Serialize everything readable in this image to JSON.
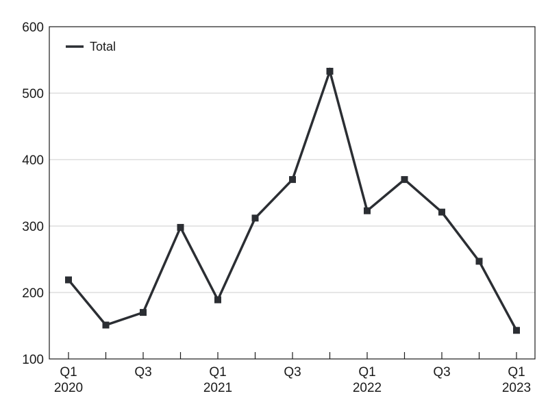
{
  "chart_data": {
    "type": "line",
    "title": "",
    "xlabel": "",
    "ylabel": "",
    "x": [
      "Q1 2020",
      "Q2 2020",
      "Q3 2020",
      "Q4 2020",
      "Q1 2021",
      "Q2 2021",
      "Q3 2021",
      "Q4 2021",
      "Q1 2022",
      "Q2 2022",
      "Q3 2022",
      "Q4 2022",
      "Q1 2023"
    ],
    "x_tick_labels": [
      {
        "index": 0,
        "line1": "Q1",
        "line2": "2020"
      },
      {
        "index": 2,
        "line1": "Q3",
        "line2": ""
      },
      {
        "index": 4,
        "line1": "Q1",
        "line2": "2021"
      },
      {
        "index": 6,
        "line1": "Q3",
        "line2": ""
      },
      {
        "index": 8,
        "line1": "Q1",
        "line2": "2022"
      },
      {
        "index": 10,
        "line1": "Q3",
        "line2": ""
      },
      {
        "index": 12,
        "line1": "Q1",
        "line2": "2023"
      }
    ],
    "ylim": [
      100,
      600
    ],
    "y_ticks": [
      100,
      200,
      300,
      400,
      500,
      600
    ],
    "grid": "horizontal",
    "legend_position": "top-left",
    "series": [
      {
        "name": "Total",
        "color": "#2b2e33",
        "marker": "square",
        "values": [
          219,
          151,
          170,
          298,
          189,
          312,
          370,
          533,
          323,
          370,
          321,
          247,
          143
        ]
      }
    ]
  }
}
